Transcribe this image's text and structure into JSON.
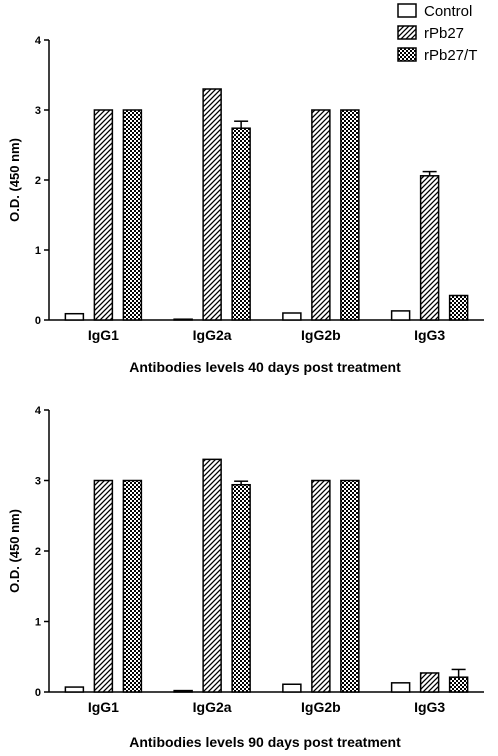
{
  "chart_data": [
    {
      "type": "bar",
      "categories": [
        "IgG1",
        "IgG2a",
        "IgG2b",
        "IgG3"
      ],
      "series": [
        {
          "name": "Control",
          "values": [
            0.09,
            0.01,
            0.1,
            0.13
          ],
          "errors": [
            0,
            0,
            0,
            0
          ]
        },
        {
          "name": "rPb27",
          "values": [
            3.0,
            3.3,
            3.0,
            2.06
          ],
          "errors": [
            0,
            0,
            0,
            0.06
          ]
        },
        {
          "name": "rPb27/T",
          "values": [
            3.0,
            2.74,
            3.0,
            0.35
          ],
          "errors": [
            0,
            0.1,
            0,
            0
          ]
        }
      ],
      "ylabel": "O.D. (450 nm)",
      "xlabel": "Antibodies levels 40 days post treatment",
      "ylim": [
        0,
        4
      ],
      "yticks": [
        "0",
        "1",
        "2",
        "3",
        "4"
      ]
    },
    {
      "type": "bar",
      "categories": [
        "IgG1",
        "IgG2a",
        "IgG2b",
        "IgG3"
      ],
      "series": [
        {
          "name": "Control",
          "values": [
            0.07,
            0.02,
            0.11,
            0.13
          ],
          "errors": [
            0,
            0,
            0,
            0
          ]
        },
        {
          "name": "rPb27",
          "values": [
            3.0,
            3.3,
            3.0,
            0.27
          ],
          "errors": [
            0,
            0,
            0,
            0
          ]
        },
        {
          "name": "rPb27/T",
          "values": [
            3.0,
            2.94,
            3.0,
            0.21
          ],
          "errors": [
            0,
            0.05,
            0,
            0.11
          ]
        }
      ],
      "ylabel": "O.D. (450 nm)",
      "xlabel": "Antibodies levels 90 days post treatment",
      "ylim": [
        0,
        4
      ],
      "yticks": [
        "0",
        "1",
        "2",
        "3",
        "4"
      ]
    }
  ],
  "legend": {
    "position": "top-right",
    "items": [
      {
        "label": "Control",
        "pattern": "empty"
      },
      {
        "label": "rPb27",
        "pattern": "diagonal-stripes"
      },
      {
        "label": "rPb27/T",
        "pattern": "checkerboard"
      }
    ]
  },
  "colors": {
    "stroke": "#000000",
    "fill": "#ffffff"
  }
}
